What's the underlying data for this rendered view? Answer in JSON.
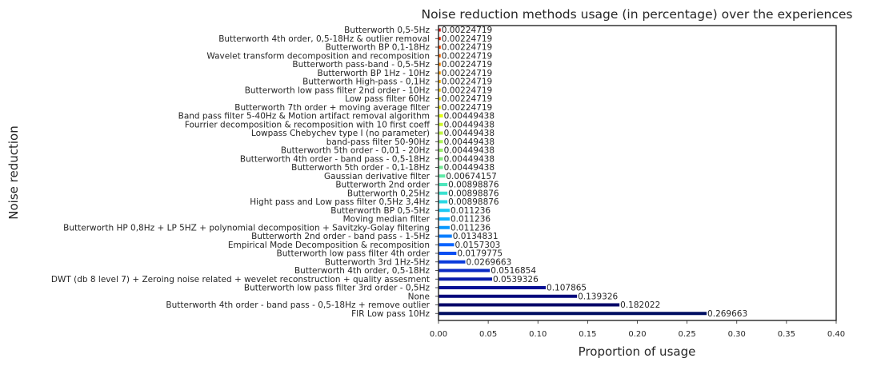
{
  "chart_data": {
    "type": "bar",
    "orientation": "horizontal",
    "title": "Noise reduction methods usage (in percentage) over the experiences",
    "xlabel": "Proportion of usage",
    "ylabel": "Noise reduction",
    "xlim": [
      0,
      0.4
    ],
    "xticks": [
      0.0,
      0.05,
      0.1,
      0.15,
      0.2,
      0.25,
      0.3,
      0.35,
      0.4
    ],
    "xtick_labels": [
      "0.00",
      "0.05",
      "0.10",
      "0.15",
      "0.20",
      "0.25",
      "0.30",
      "0.35",
      "0.40"
    ],
    "grid": false,
    "colormap": "jet",
    "categories": [
      "Butterworth 0,5-5Hz",
      "Butterworth 4th order, 0,5-18Hz & outlier removal",
      "Butterworth BP 0,1-18Hz",
      "Wavelet transform decomposition and recomposition",
      "Butterworth pass-band - 0,5-5Hz",
      "Butterworth BP 1Hz - 10Hz",
      "Butterworth High-pass - 0,1Hz",
      "Butterworth low pass filter 2nd order - 10Hz",
      "Low pass filter 60Hz",
      "Butterworth 7th order + moving average filter",
      "Band pass filter 5-40Hz & Motion artifact removal algorithm",
      "Fourrier decomposition & recomposition with 10 first coeff",
      "Lowpass Chebychev type I (no parameter)",
      "band-pass filter 50-90Hz",
      "Butterworth 5th order - 0,01 - 20Hz",
      "Butterworth 4th order - band pass -  0,5-18Hz",
      "Butterworth 5th order - 0,1-18Hz",
      "Gaussian derivative filter",
      "Butterworth 2nd order",
      "Butterworth 0,25Hz",
      "Hight pass and Low pass filter 0,5Hz 3,4Hz",
      "Butterworth BP 0,5-5Hz",
      "Moving median filter",
      "Butterworth HP 0,8Hz + LP 5HZ + polynomial decomposition + Savitzky-Golay filtering",
      "Butterworth 2nd order - band pass - 1-5Hz",
      "Empirical Mode Decomposition & recomposition",
      "Butterworth low pass filter 4th order",
      "Butterworth 3rd 1Hz-5Hz",
      "Butterworth 4th order, 0,5-18Hz",
      "DWT (db 8 level 7) + Zeroing noise related + wevelet reconstruction + quality assesment",
      "Butterworth low pass filter 3rd order - 0,5Hz",
      "None",
      "Butterworth 4th order - band pass -  0,5-18Hz + remove outlier",
      "FIR Low pass 10Hz"
    ],
    "values": [
      0.00224719,
      0.00224719,
      0.00224719,
      0.00224719,
      0.00224719,
      0.00224719,
      0.00224719,
      0.00224719,
      0.00224719,
      0.00224719,
      0.00449438,
      0.00449438,
      0.00449438,
      0.00449438,
      0.00449438,
      0.00449438,
      0.00449438,
      0.00674157,
      0.00898876,
      0.00898876,
      0.00898876,
      0.011236,
      0.011236,
      0.011236,
      0.0134831,
      0.0157303,
      0.0179775,
      0.0269663,
      0.0516854,
      0.0539326,
      0.107865,
      0.139326,
      0.182022,
      0.269663
    ],
    "value_labels": [
      "0.00224719",
      "0.00224719",
      "0.00224719",
      "0.00224719",
      "0.00224719",
      "0.00224719",
      "0.00224719",
      "0.00224719",
      "0.00224719",
      "0.00224719",
      "0.00449438",
      "0.00449438",
      "0.00449438",
      "0.00449438",
      "0.00449438",
      "0.00449438",
      "0.00449438",
      "0.00674157",
      "0.00898876",
      "0.00898876",
      "0.00898876",
      "0.011236",
      "0.011236",
      "0.011236",
      "0.0134831",
      "0.0157303",
      "0.0179775",
      "0.0269663",
      "0.0516854",
      "0.0539326",
      "0.107865",
      "0.139326",
      "0.182022",
      "0.269663"
    ],
    "colors": [
      "#e41a1c",
      "#ff2a00",
      "#ff4a00",
      "#ff6a00",
      "#ff8800",
      "#ffa200",
      "#ffbb00",
      "#ffd000",
      "#fce300",
      "#f4f000",
      "#e2ff10",
      "#cdf92a",
      "#bff740",
      "#acf556",
      "#99f06b",
      "#86ee80",
      "#73ec94",
      "#60eaa8",
      "#4ee6bc",
      "#3ce2d0",
      "#2ad9e4",
      "#19c9f4",
      "#0fb3ff",
      "#0898ff",
      "#0a7eff",
      "#0a64ff",
      "#0a4ef2",
      "#0a3bdc",
      "#0a2ac4",
      "#081cac",
      "#061094",
      "#04087c",
      "#020468",
      "#000f62"
    ]
  }
}
